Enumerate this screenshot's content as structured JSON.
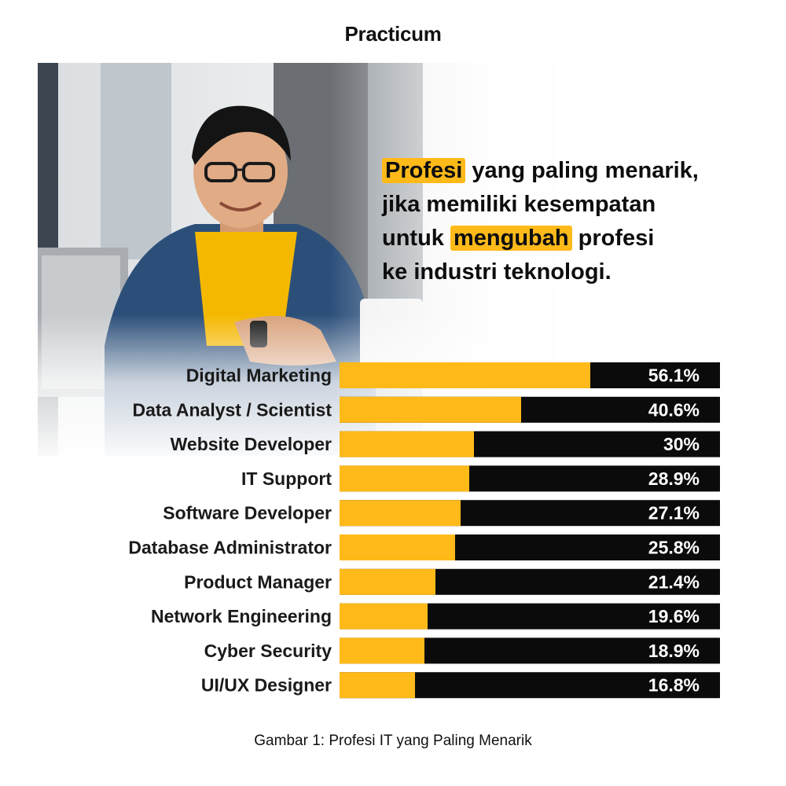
{
  "brand": "Practicum",
  "headline": {
    "line1_highlight": "Profesi",
    "line1_rest": " yang paling menarik,",
    "line2": "jika memiliki kesempatan",
    "line3_start": "untuk ",
    "line3_highlight": "mengubah",
    "line3_end": " profesi",
    "line4": "ke industri teknologi."
  },
  "caption": "Gambar 1: Profesi IT yang Paling Menarik",
  "colors": {
    "accent": "#ffba1a",
    "bar_background": "#0b0b0b",
    "text": "#111111"
  },
  "chart_data": {
    "type": "bar",
    "orientation": "horizontal",
    "categories": [
      "Digital Marketing",
      "Data Analyst / Scientist",
      "Website Developer",
      "IT Support",
      "Software Developer",
      "Database Administrator",
      "Product Manager",
      "Network Engineering",
      "Cyber Security",
      "UI/UX Designer"
    ],
    "values": [
      56.1,
      40.6,
      30,
      28.9,
      27.1,
      25.8,
      21.4,
      19.6,
      18.9,
      16.8
    ],
    "value_labels": [
      "56.1%",
      "40.6%",
      "30%",
      "28.9%",
      "27.1%",
      "25.8%",
      "21.4%",
      "19.6%",
      "18.9%",
      "16.8%"
    ],
    "unit": "%",
    "xlim": [
      0,
      85
    ]
  }
}
